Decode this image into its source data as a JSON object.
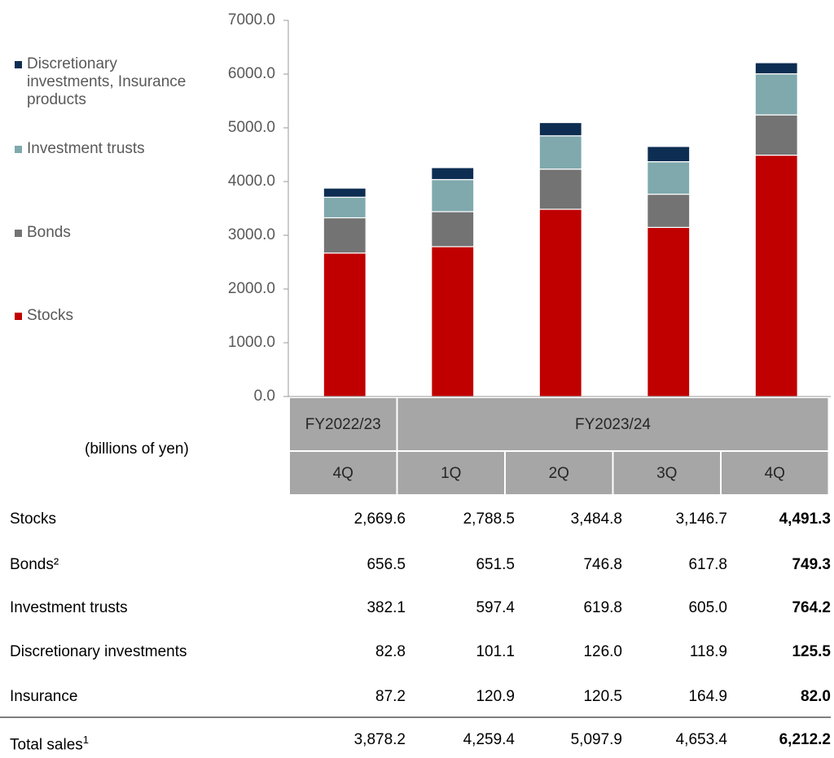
{
  "chart_data": {
    "type": "bar",
    "stacked": true,
    "unit_label": "(billions of yen)",
    "category_groups": [
      {
        "label": "FY2022/23",
        "span": 1
      },
      {
        "label": "FY2023/24",
        "span": 4
      }
    ],
    "categories": [
      "4Q",
      "1Q",
      "2Q",
      "3Q",
      "4Q"
    ],
    "ylim": [
      0,
      7000
    ],
    "yticks": [
      {
        "value": 0,
        "label": "0.0"
      },
      {
        "value": 1000,
        "label": "1000.0"
      },
      {
        "value": 2000,
        "label": "2000.0"
      },
      {
        "value": 3000,
        "label": "3000.0"
      },
      {
        "value": 4000,
        "label": "4000.0"
      },
      {
        "value": 5000,
        "label": "5000.0"
      },
      {
        "value": 6000,
        "label": "6000.0"
      },
      {
        "value": 7000,
        "label": "7000.0"
      }
    ],
    "series": [
      {
        "name": "Stocks",
        "color": "#c00000",
        "values": [
          2669.6,
          2788.5,
          3484.8,
          3146.7,
          4491.3
        ]
      },
      {
        "name": "Bonds",
        "color": "#737373",
        "values": [
          656.5,
          651.5,
          746.8,
          617.8,
          749.3
        ]
      },
      {
        "name": "Investment trusts",
        "color": "#7fa9ad",
        "values": [
          382.1,
          597.4,
          619.8,
          605.0,
          764.2
        ]
      },
      {
        "name": "Discretionary investments, Insurance products",
        "color": "#0d2e52",
        "values": [
          170.0,
          222.0,
          246.5,
          283.8,
          207.5
        ]
      }
    ]
  },
  "table": {
    "highlight_column": 4,
    "rows": [
      {
        "label": "Stocks",
        "values": [
          "2,669.6",
          "2,788.5",
          "3,484.8",
          "3,146.7",
          "4,491.3"
        ]
      },
      {
        "label": "Bonds²",
        "values": [
          "656.5",
          "651.5",
          "746.8",
          "617.8",
          "749.3"
        ]
      },
      {
        "label": "Investment trusts",
        "values": [
          "382.1",
          "597.4",
          "619.8",
          "605.0",
          "764.2"
        ]
      },
      {
        "label": "Discretionary investments",
        "values": [
          "82.8",
          "101.1",
          "126.0",
          "118.9",
          "125.5"
        ]
      },
      {
        "label": "Insurance",
        "values": [
          "87.2",
          "120.9",
          "120.5",
          "164.9",
          "82.0"
        ]
      }
    ],
    "total": {
      "label": "Total sales",
      "note": "1",
      "values": [
        "3,878.2",
        "4,259.4",
        "5,097.9",
        "4,653.4",
        "6,212.2"
      ]
    }
  }
}
